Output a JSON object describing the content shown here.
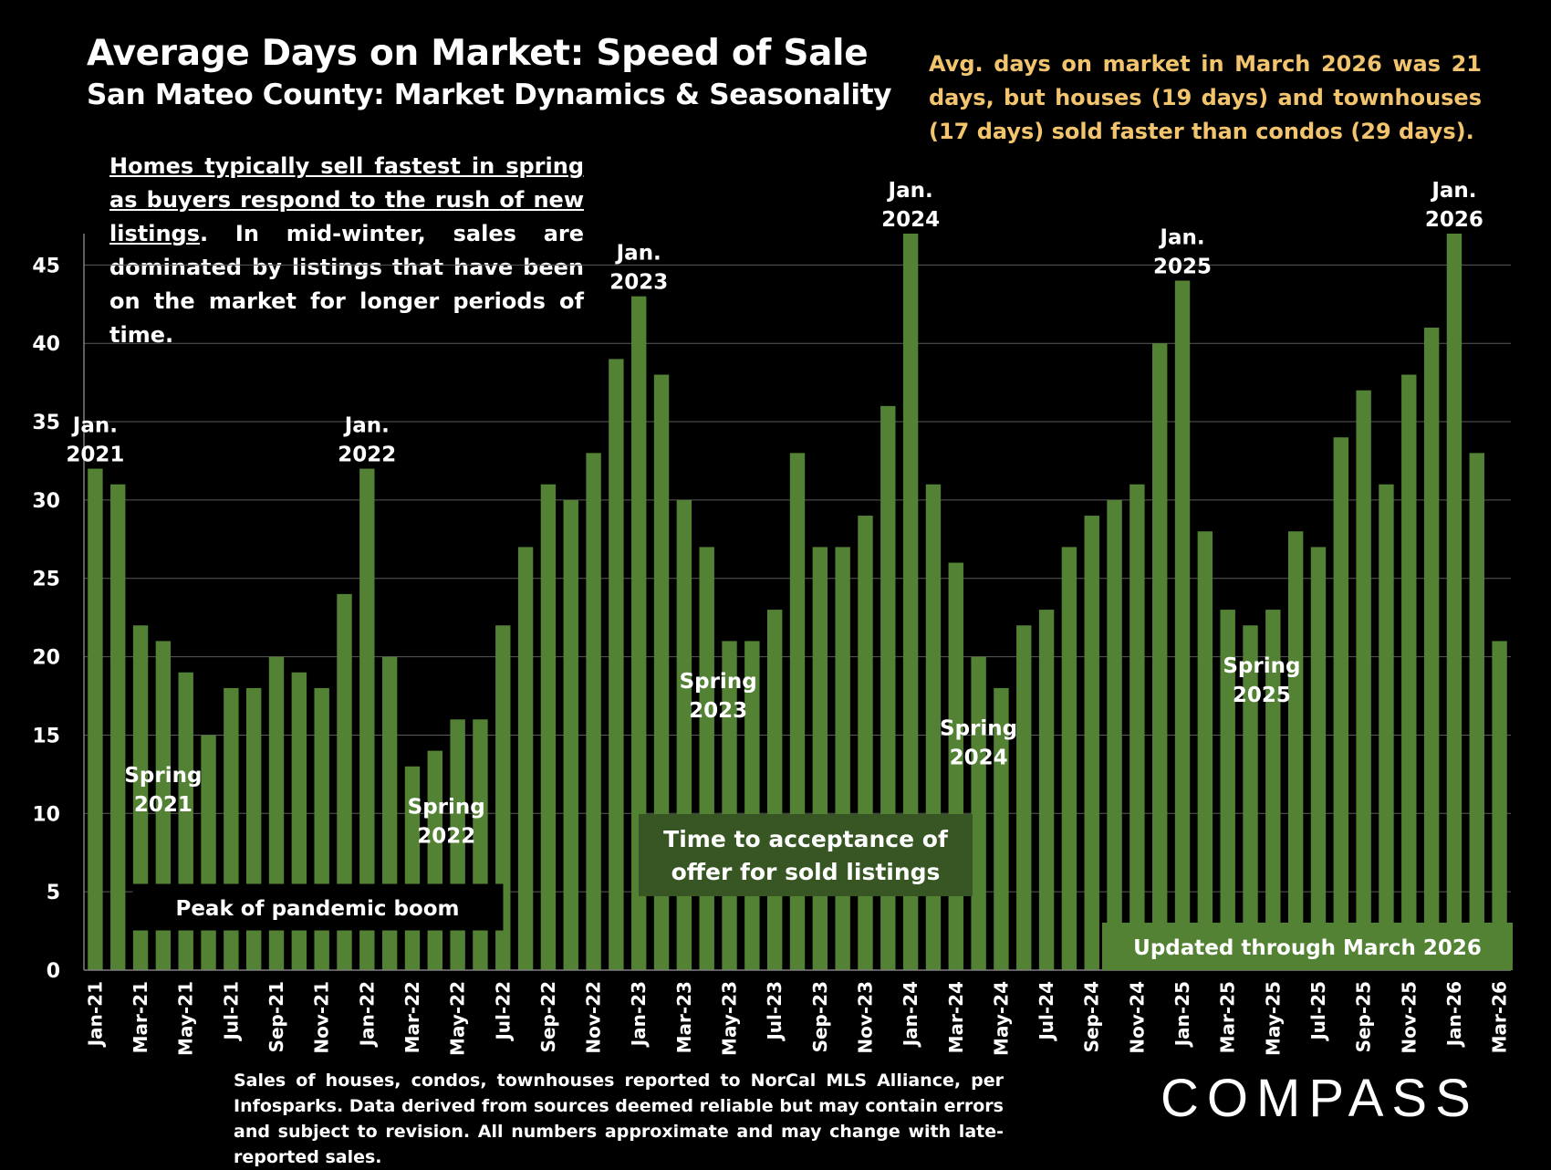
{
  "header": {
    "title": "Average Days on Market:  Speed of Sale",
    "subtitle": "San Mateo County: Market Dynamics & Seasonality"
  },
  "summary": "Avg. days on market in March 2026 was 21 days, but houses (19 days) and townhouses (17 days) sold faster than condos (29 days).",
  "seasonality_note": {
    "underlined": "Homes typically sell fastest in spring as buyers respond to the rush of new listings",
    "rest": ". In mid-winter, sales are dominated by listings that have been on the market for longer periods of time."
  },
  "footnote": "Sales of houses, condos, townhouses reported to NorCal MLS Alliance, per Infosparks. Data derived from sources deemed reliable but may contain errors and subject to revision. All numbers approximate and may change with late-reported sales.",
  "logo": "COMPASS",
  "colors": {
    "bar": "#548235",
    "background": "#000000",
    "summary_text": "#f2c46d",
    "offer_box": "#375623",
    "updated_box": "#548235"
  },
  "chart_data": {
    "type": "bar",
    "title": "Average Days on Market:  Speed of Sale",
    "ylim": [
      0,
      47
    ],
    "yticks": [
      0,
      5,
      10,
      15,
      20,
      25,
      30,
      35,
      40,
      45
    ],
    "grid": true,
    "categories": [
      "Jan-21",
      "Feb-21",
      "Mar-21",
      "Apr-21",
      "May-21",
      "Jun-21",
      "Jul-21",
      "Aug-21",
      "Sep-21",
      "Oct-21",
      "Nov-21",
      "Dec-21",
      "Jan-22",
      "Feb-22",
      "Mar-22",
      "Apr-22",
      "May-22",
      "Jun-22",
      "Jul-22",
      "Aug-22",
      "Sep-22",
      "Oct-22",
      "Nov-22",
      "Dec-22",
      "Jan-23",
      "Feb-23",
      "Mar-23",
      "Apr-23",
      "May-23",
      "Jun-23",
      "Jul-23",
      "Aug-23",
      "Sep-23",
      "Oct-23",
      "Nov-23",
      "Dec-23",
      "Jan-24",
      "Feb-24",
      "Mar-24",
      "Apr-24",
      "May-24",
      "Jun-24",
      "Jul-24",
      "Aug-24",
      "Sep-24",
      "Oct-24",
      "Nov-24",
      "Dec-24",
      "Jan-25",
      "Feb-25",
      "Mar-25",
      "Apr-25",
      "May-25",
      "Jun-25",
      "Jul-25",
      "Aug-25",
      "Sep-25",
      "Oct-25",
      "Nov-25",
      "Dec-25",
      "Jan-26",
      "Feb-26",
      "Mar-26"
    ],
    "tick_labels": [
      "Jan-21",
      "Mar-21",
      "May-21",
      "Jul-21",
      "Sep-21",
      "Nov-21",
      "Jan-22",
      "Mar-22",
      "May-22",
      "Jul-22",
      "Sep-22",
      "Nov-22",
      "Jan-23",
      "Mar-23",
      "May-23",
      "Jul-23",
      "Sep-23",
      "Nov-23",
      "Jan-24",
      "Mar-24",
      "May-24",
      "Jul-24",
      "Sep-24",
      "Nov-24",
      "Jan-25",
      "Mar-25",
      "May-25",
      "Jul-25",
      "Sep-25",
      "Nov-25",
      "Jan-26",
      "Mar-26"
    ],
    "values": [
      32,
      31,
      22,
      21,
      19,
      15,
      18,
      18,
      20,
      19,
      18,
      24,
      32,
      20,
      13,
      14,
      16,
      16,
      22,
      27,
      31,
      30,
      33,
      39,
      43,
      38,
      30,
      27,
      21,
      21,
      23,
      33,
      27,
      27,
      29,
      36,
      47,
      31,
      26,
      20,
      18,
      22,
      23,
      27,
      29,
      30,
      31,
      40,
      44,
      28,
      23,
      22,
      23,
      28,
      27,
      34,
      37,
      31,
      38,
      41,
      47,
      33,
      21
    ],
    "annotations": [
      {
        "text": "Jan.\n2021",
        "index": 0,
        "kind": "peak"
      },
      {
        "text": "Jan.\n2022",
        "index": 12,
        "kind": "peak"
      },
      {
        "text": "Jan.\n2023",
        "index": 24,
        "kind": "peak"
      },
      {
        "text": "Jan.\n2024",
        "index": 36,
        "kind": "peak"
      },
      {
        "text": "Jan.\n2025",
        "index": 48,
        "kind": "peak"
      },
      {
        "text": "Jan.\n2026",
        "index": 60,
        "kind": "peak"
      },
      {
        "text": "Spring\n2021",
        "index": 3,
        "kind": "spring",
        "y": 12
      },
      {
        "text": "Spring\n2022",
        "index": 15.5,
        "kind": "spring",
        "y": 10
      },
      {
        "text": "Spring\n2023",
        "index": 27.5,
        "kind": "spring",
        "y": 18
      },
      {
        "text": "Spring\n2024",
        "index": 39,
        "kind": "spring",
        "y": 15
      },
      {
        "text": "Spring\n2025",
        "index": 51.5,
        "kind": "spring",
        "y": 19
      }
    ],
    "boxes": {
      "pandemic": "Peak of pandemic boom",
      "offer": "Time to acceptance of offer for sold listings",
      "updated": "Updated through March 2026"
    }
  }
}
